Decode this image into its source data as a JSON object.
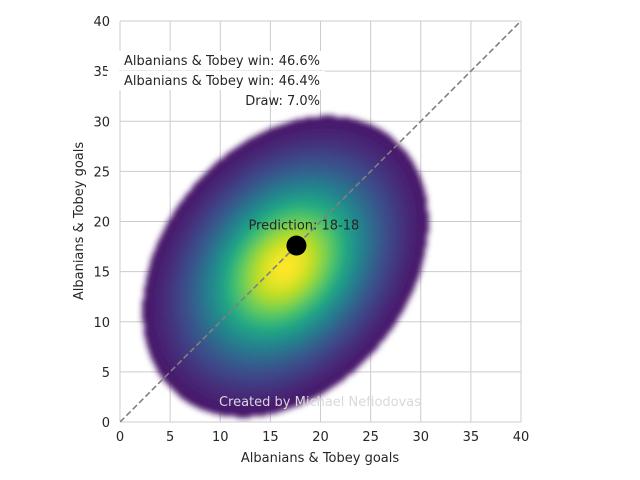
{
  "chart_data": {
    "type": "heatmap",
    "xlabel": "Albanians & Tobey goals",
    "ylabel": "Albanians & Tobey goals",
    "xlim": [
      0,
      40
    ],
    "ylim": [
      0,
      40
    ],
    "xticks": [
      0,
      5,
      10,
      15,
      20,
      25,
      30,
      35,
      40
    ],
    "yticks": [
      0,
      5,
      10,
      15,
      20,
      25,
      30,
      35,
      40
    ],
    "grid": true,
    "colormap": "viridis",
    "density": {
      "peak_x": 16.5,
      "peak_y": 15.5,
      "spread_x": 5.5,
      "spread_y": 5.8,
      "correlation": 0.3,
      "extent_x": [
        6.5,
        29.8
      ],
      "extent_y": [
        6.5,
        30
      ]
    },
    "prediction_point": {
      "x": 17.6,
      "y": 17.6,
      "label": "Prediction: 18-18",
      "color": "#000000"
    },
    "diagonal": {
      "from": [
        0,
        0
      ],
      "to": [
        40,
        40
      ],
      "style": "dashed",
      "color": "#808080"
    },
    "annotations": [
      "Albanians & Tobey win: 46.6%",
      "Albanians & Tobey win: 46.4%",
      "Draw: 7.0%"
    ],
    "watermark": "Created by Michael Nefiodovas"
  }
}
